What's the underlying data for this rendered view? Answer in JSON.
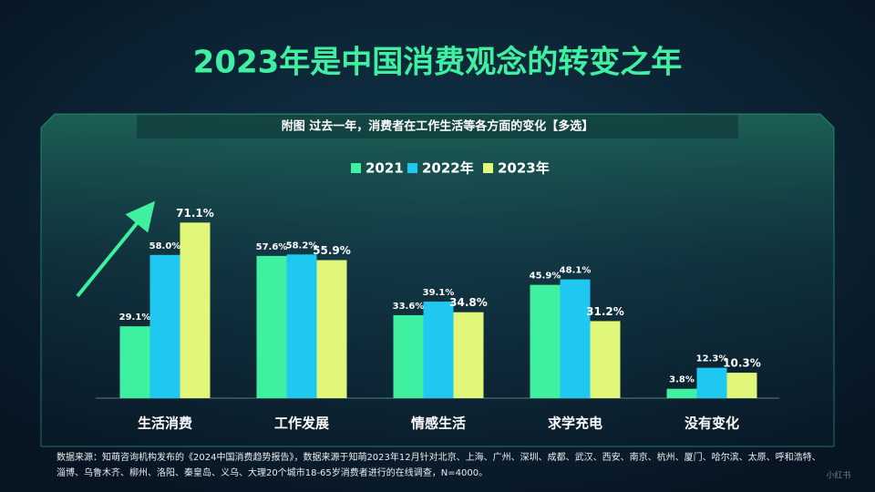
{
  "chart_data": {
    "type": "bar",
    "title": "2023年是中国消费观念的转变之年",
    "subtitle": "附图  过去一年，消费者在工作生活等各方面的变化【多选】",
    "categories": [
      "生活消费",
      "工作发展",
      "情感生活",
      "求学充电",
      "没有变化"
    ],
    "series": [
      {
        "name": "2021",
        "color": "#3ef0a0",
        "values": [
          29.1,
          57.6,
          33.6,
          45.9,
          3.8
        ],
        "value_labels": [
          "29.1%",
          "57.6%",
          "33.6%",
          "45.9%",
          "3.8%"
        ]
      },
      {
        "name": "2022年",
        "color": "#1ec8f0",
        "values": [
          58,
          58.2,
          39.1,
          48.1,
          12.3
        ],
        "value_labels": [
          "58.0%",
          "58.2%",
          "39.1%",
          "48.1%",
          "12.3%"
        ]
      },
      {
        "name": "2023年",
        "color": "#e0f77a",
        "values": [
          71.1,
          55.9,
          34.8,
          31.2,
          10.3
        ],
        "value_labels": [
          "71.1%",
          "55.9%",
          "34.8%",
          "31.2%",
          "10.3%"
        ]
      }
    ],
    "source": [
      "数据来源：知萌咨询机构发布的《2024中国消费趋势报告》，数据来源于知萌2023年12月针对北京、上海、广州、深圳、成都、武汉、西安、南京、杭州、厦门、哈尔滨、太原、呼和浩特、",
      "淄博、乌鲁木齐、柳州、洛阳、秦皇岛、义乌、大理20个城市18-65岁消费者进行的在线调查，N=4000。"
    ],
    "watermark": "小红书"
  }
}
